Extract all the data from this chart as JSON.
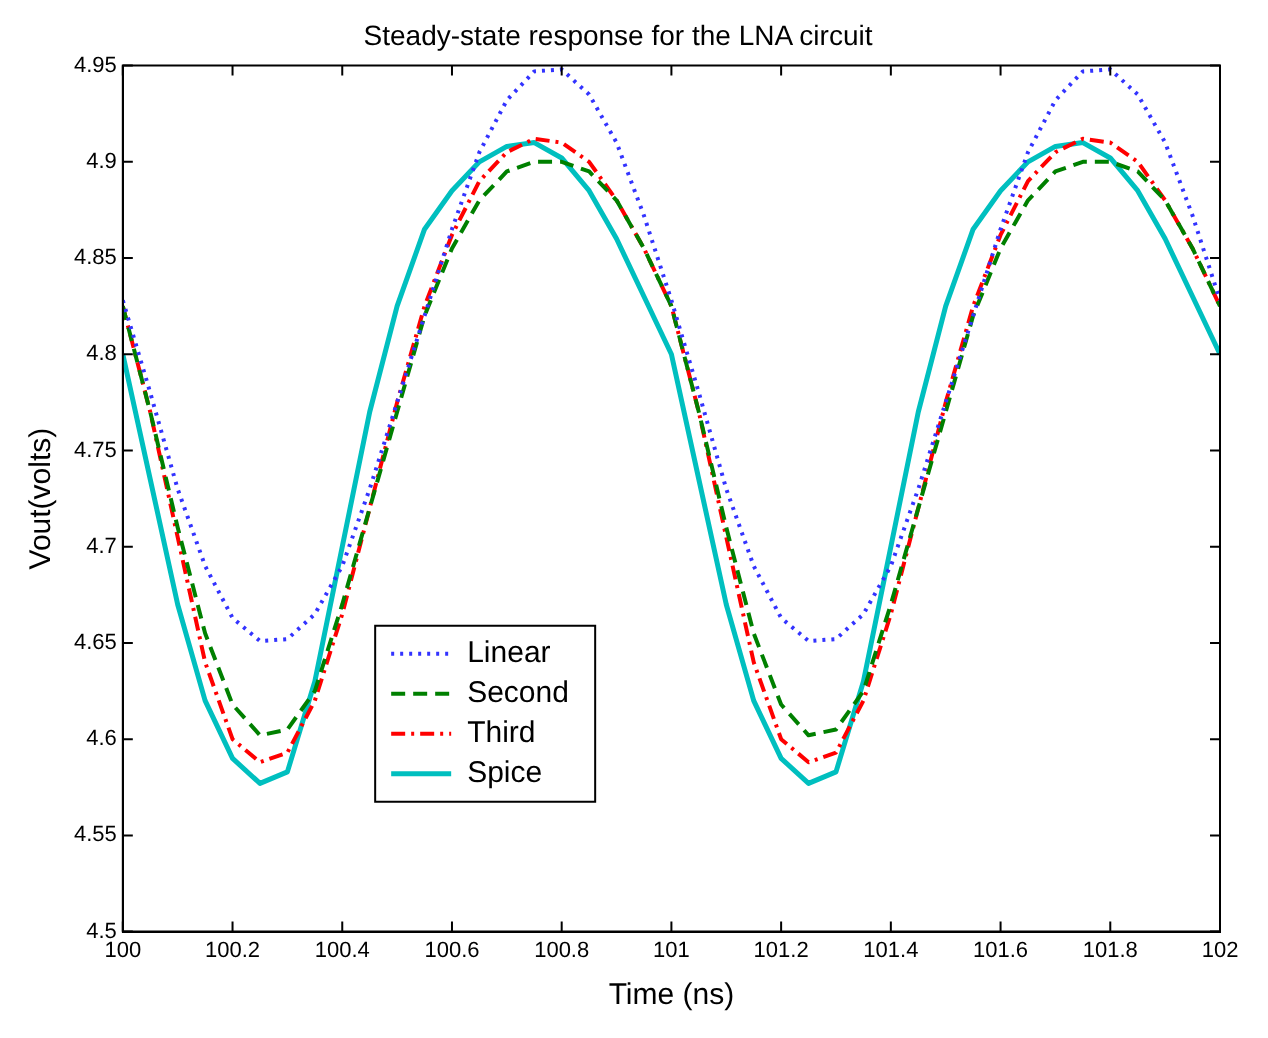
{
  "chart_data": {
    "type": "line",
    "title": "Steady-state response for the LNA circuit",
    "xlabel": "Time (ns)",
    "ylabel": "Vout(volts)",
    "x": [
      100,
      100.05,
      100.1,
      100.15,
      100.2,
      100.25,
      100.3,
      100.35,
      100.4,
      100.45,
      100.5,
      100.55,
      100.6,
      100.65,
      100.7,
      100.75,
      100.8,
      100.85,
      100.9,
      100.95,
      101,
      101.05,
      101.1,
      101.15,
      101.2,
      101.25,
      101.3,
      101.35,
      101.4,
      101.45,
      101.5,
      101.55,
      101.6,
      101.65,
      101.7,
      101.75,
      101.8,
      101.85,
      101.9,
      101.95,
      102
    ],
    "series": [
      {
        "name": "Linear",
        "color": "#3333ff",
        "line_style": "dotted",
        "values": [
          4.828,
          4.78,
          4.73,
          4.69,
          4.663,
          4.651,
          4.652,
          4.665,
          4.69,
          4.73,
          4.775,
          4.82,
          4.865,
          4.905,
          4.932,
          4.947,
          4.948,
          4.935,
          4.91,
          4.872,
          4.828,
          4.78,
          4.73,
          4.69,
          4.663,
          4.651,
          4.652,
          4.665,
          4.69,
          4.73,
          4.775,
          4.82,
          4.865,
          4.905,
          4.932,
          4.947,
          4.948,
          4.935,
          4.91,
          4.872,
          4.828
        ]
      },
      {
        "name": "Second",
        "color": "#008000",
        "line_style": "dashed",
        "values": [
          4.825,
          4.77,
          4.71,
          4.655,
          4.618,
          4.602,
          4.605,
          4.625,
          4.67,
          4.72,
          4.77,
          4.82,
          4.855,
          4.88,
          4.895,
          4.9,
          4.9,
          4.895,
          4.88,
          4.855,
          4.825,
          4.77,
          4.71,
          4.655,
          4.618,
          4.602,
          4.605,
          4.625,
          4.67,
          4.72,
          4.77,
          4.82,
          4.855,
          4.88,
          4.895,
          4.9,
          4.9,
          4.895,
          4.88,
          4.855,
          4.825
        ]
      },
      {
        "name": "Third",
        "color": "#ff0000",
        "line_style": "dashdot",
        "values": [
          4.825,
          4.77,
          4.705,
          4.64,
          4.6,
          4.588,
          4.593,
          4.62,
          4.665,
          4.72,
          4.775,
          4.825,
          4.862,
          4.89,
          4.905,
          4.912,
          4.91,
          4.9,
          4.88,
          4.855,
          4.825,
          4.77,
          4.705,
          4.64,
          4.6,
          4.588,
          4.593,
          4.62,
          4.665,
          4.72,
          4.775,
          4.825,
          4.862,
          4.89,
          4.905,
          4.912,
          4.91,
          4.9,
          4.88,
          4.855,
          4.825
        ]
      },
      {
        "name": "Spice",
        "color": "#00bfbf",
        "line_style": "solid",
        "values": [
          4.8,
          4.735,
          4.67,
          4.62,
          4.59,
          4.577,
          4.583,
          4.63,
          4.7,
          4.77,
          4.825,
          4.865,
          4.885,
          4.9,
          4.908,
          4.91,
          4.902,
          4.885,
          4.86,
          4.83,
          4.8,
          4.735,
          4.67,
          4.62,
          4.59,
          4.577,
          4.583,
          4.63,
          4.7,
          4.77,
          4.825,
          4.865,
          4.885,
          4.9,
          4.908,
          4.91,
          4.902,
          4.885,
          4.86,
          4.83,
          4.8
        ]
      }
    ],
    "xlim": [
      100,
      102
    ],
    "xticks": [
      100,
      100.2,
      100.4,
      100.6,
      100.8,
      101,
      101.2,
      101.4,
      101.6,
      101.8,
      102
    ],
    "ylim": [
      4.5,
      4.95
    ],
    "yticks": [
      4.5,
      4.55,
      4.6,
      4.65,
      4.7,
      4.75,
      4.8,
      4.85,
      4.9,
      4.95
    ],
    "grid": false,
    "legend": "bottom left",
    "marker": "none"
  }
}
